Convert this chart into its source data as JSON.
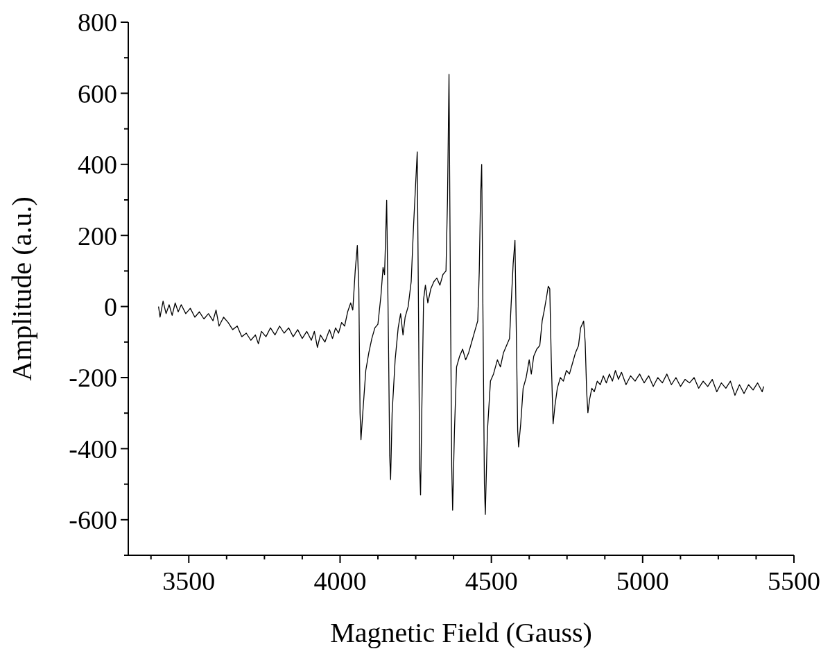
{
  "chart_data": {
    "type": "line",
    "xlabel": "Magnetic Field (Gauss)",
    "ylabel": "Amplitude (a.u.)",
    "xlim": [
      3300,
      5500
    ],
    "ylim": [
      -700,
      800
    ],
    "xticks": [
      {
        "value": 3375,
        "label": null
      },
      3500,
      {
        "value": 3625,
        "label": null
      },
      {
        "value": 3750,
        "label": null
      },
      {
        "value": 3875,
        "label": null
      },
      4000,
      {
        "value": 4125,
        "label": null
      },
      {
        "value": 4250,
        "label": null
      },
      {
        "value": 4375,
        "label": null
      },
      4500,
      {
        "value": 4625,
        "label": null
      },
      {
        "value": 4750,
        "label": null
      },
      {
        "value": 4875,
        "label": null
      },
      5000,
      {
        "value": 5125,
        "label": null
      },
      {
        "value": 5250,
        "label": null
      },
      {
        "value": 5375,
        "label": null
      },
      5500
    ],
    "yticks": [
      {
        "value": -700,
        "label": null
      },
      -600,
      {
        "value": -500,
        "label": null
      },
      -400,
      {
        "value": -300,
        "label": null
      },
      -200,
      {
        "value": -100,
        "label": null
      },
      0,
      {
        "value": 100,
        "label": null
      },
      200,
      {
        "value": 300,
        "label": null
      },
      400,
      {
        "value": 500,
        "label": null
      },
      600,
      {
        "value": 700,
        "label": null
      },
      800
    ],
    "marker": "none",
    "line_style": "solid",
    "series": [
      {
        "color": "#000000",
        "x": [
          3400,
          3405,
          3415,
          3425,
          3435,
          3445,
          3455,
          3465,
          3475,
          3490,
          3505,
          3520,
          3535,
          3550,
          3565,
          3580,
          3590,
          3600,
          3615,
          3630,
          3645,
          3660,
          3675,
          3690,
          3705,
          3720,
          3730,
          3740,
          3755,
          3770,
          3785,
          3800,
          3815,
          3830,
          3845,
          3860,
          3875,
          3890,
          3905,
          3915,
          3925,
          3935,
          3950,
          3965,
          3975,
          3985,
          3995,
          4005,
          4015,
          4025,
          4035,
          4042,
          4050,
          4057,
          4062,
          4066,
          4069,
          4075,
          4085,
          4095,
          4105,
          4115,
          4125,
          4135,
          4142,
          4147,
          4154,
          4160,
          4164,
          4167,
          4172,
          4182,
          4192,
          4200,
          4208,
          4215,
          4225,
          4235,
          4243,
          4250,
          4255,
          4260,
          4263,
          4266,
          4270,
          4276,
          4282,
          4290,
          4300,
          4310,
          4320,
          4330,
          4340,
          4350,
          4355,
          4360,
          4365,
          4369,
          4372,
          4378,
          4385,
          4395,
          4405,
          4415,
          4425,
          4435,
          4445,
          4455,
          4460,
          4464,
          4468,
          4473,
          4477,
          4480,
          4487,
          4497,
          4507,
          4520,
          4530,
          4540,
          4550,
          4560,
          4565,
          4572,
          4578,
          4583,
          4587,
          4590,
          4597,
          4605,
          4615,
          4625,
          4632,
          4640,
          4650,
          4660,
          4668,
          4675,
          4683,
          4688,
          4693,
          4698,
          4704,
          4710,
          4718,
          4728,
          4738,
          4748,
          4758,
          4768,
          4778,
          4788,
          4795,
          4805,
          4810,
          4815,
          4819,
          4825,
          4832,
          4840,
          4850,
          4860,
          4870,
          4880,
          4890,
          4900,
          4910,
          4920,
          4930,
          4945,
          4960,
          4975,
          4990,
          5005,
          5020,
          5035,
          5050,
          5065,
          5080,
          5095,
          5110,
          5125,
          5140,
          5155,
          5170,
          5185,
          5200,
          5215,
          5230,
          5245,
          5260,
          5275,
          5290,
          5305,
          5320,
          5335,
          5350,
          5365,
          5380,
          5395,
          5400
        ],
        "values": [
          0,
          -30,
          15,
          -20,
          5,
          -25,
          10,
          -15,
          5,
          -20,
          -5,
          -30,
          -15,
          -35,
          -20,
          -40,
          -10,
          -55,
          -30,
          -45,
          -65,
          -55,
          -85,
          -75,
          -95,
          -80,
          -105,
          -70,
          -85,
          -60,
          -80,
          -55,
          -75,
          -60,
          -85,
          -65,
          -90,
          -70,
          -95,
          -70,
          -115,
          -80,
          -100,
          -65,
          -90,
          -60,
          -75,
          -45,
          -55,
          -15,
          10,
          -10,
          100,
          172,
          50,
          -300,
          -375,
          -300,
          -180,
          -130,
          -90,
          -60,
          -50,
          30,
          110,
          90,
          299,
          -100,
          -420,
          -487,
          -300,
          -150,
          -60,
          -20,
          -80,
          -30,
          0,
          70,
          230,
          350,
          435,
          -100,
          -450,
          -530,
          -300,
          20,
          60,
          10,
          50,
          70,
          80,
          60,
          90,
          100,
          300,
          653,
          0,
          -450,
          -573,
          -350,
          -170,
          -140,
          -120,
          -150,
          -130,
          -100,
          -70,
          -40,
          100,
          300,
          400,
          -100,
          -500,
          -585,
          -350,
          -210,
          -190,
          -150,
          -170,
          -130,
          -110,
          -90,
          0,
          120,
          186,
          -100,
          -350,
          -395,
          -330,
          -230,
          -200,
          -150,
          -190,
          -140,
          -120,
          -110,
          -40,
          -10,
          30,
          57,
          50,
          -150,
          -330,
          -280,
          -230,
          -200,
          -210,
          -180,
          -190,
          -160,
          -130,
          -110,
          -60,
          -41,
          -100,
          -240,
          -299,
          -260,
          -230,
          -240,
          -210,
          -220,
          -195,
          -215,
          -190,
          -210,
          -180,
          -205,
          -185,
          -220,
          -195,
          -210,
          -190,
          -215,
          -195,
          -225,
          -200,
          -215,
          -190,
          -220,
          -200,
          -225,
          -205,
          -215,
          -200,
          -230,
          -210,
          -225,
          -205,
          -240,
          -215,
          -230,
          -210,
          -250,
          -220,
          -245,
          -220,
          -235,
          -215,
          -240,
          -225
        ]
      }
    ]
  }
}
